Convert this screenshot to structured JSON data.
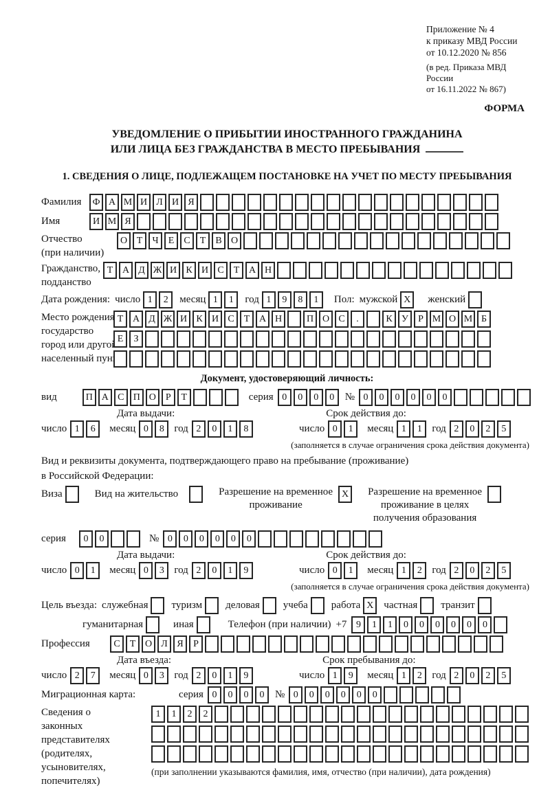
{
  "doc": {
    "annex": [
      "Приложение № 4",
      "к приказу МВД России",
      "от 10.12.2020 № 856"
    ],
    "annex_note": [
      "(в ред. Приказа МВД России",
      "от 16.11.2022 № 867)"
    ],
    "form_label": "ФОРМА",
    "title1": "УВЕДОМЛЕНИЕ О ПРИБЫТИИ ИНОСТРАННОГО ГРАЖДАНИНА",
    "title2": "ИЛИ ЛИЦА БЕЗ ГРАЖДАНСТВА В МЕСТО ПРЕБЫВАНИЯ",
    "section1": "1. СВЕДЕНИЯ О ЛИЦЕ, ПОДЛЕЖАЩЕМ ПОСТАНОВКЕ НА УЧЕТ ПО МЕСТУ ПРЕБЫВАНИЯ"
  },
  "labels": {
    "surname": "Фамилия",
    "name": "Имя",
    "patronymic": "Отчество",
    "patronymic_note": "(при наличии)",
    "citizenship_l1": "Гражданство,",
    "citizenship_l2": "подданство",
    "birth_date": "Дата рождения:",
    "day": "число",
    "month": "месяц",
    "year": "год",
    "sex": "Пол:",
    "male": "мужской",
    "female": "женский",
    "birth_place": [
      "Место рождения:",
      "государство",
      "город или другой",
      "населенный пункт"
    ],
    "identity_doc": "Документ, удостоверяющий личность:",
    "kind": "вид",
    "series": "серия",
    "number_sign": "№",
    "issue_date": "Дата выдачи:",
    "valid_until": "Срок действия до:",
    "limited_note": "(заполняется в случае ограничения срока действия документа)",
    "residence_doc_l1": "Вид и реквизиты документа, подтверждающего право на пребывание (проживание)",
    "residence_doc_l2": "в Российской Федерации:",
    "visa": "Виза",
    "residence_permit": "Вид на жительство",
    "temp_residence": [
      "Разрешение на временное",
      "проживание"
    ],
    "temp_residence_edu": [
      "Разрешение на временное",
      "проживание в целях",
      "получения образования"
    ],
    "entry_purpose": "Цель въезда:",
    "purpose_options": [
      "служебная",
      "туризм",
      "деловая",
      "учеба",
      "работа",
      "частная",
      "транзит"
    ],
    "purpose_options2": [
      "гуманитарная",
      "иная"
    ],
    "phone": "Телефон (при наличии)",
    "phone_prefix": "+7",
    "profession": "Профессия",
    "entry_date": "Дата въезда:",
    "stay_until": "Срок пребывания до:",
    "migration_card": "Миграционная карта:",
    "legal_rep_lines": [
      "Сведения о",
      "законных",
      "представителях",
      "(родителях,",
      "усыновителях,",
      "попечителях)"
    ],
    "legal_rep_note": "(при заполнении указываются фамилия, имя, отчество (при наличии), дата рождения)"
  },
  "values": {
    "surname": {
      "value": "ФАМИЛИЯ",
      "len": 26
    },
    "name": {
      "value": "ИМЯ",
      "len": 26
    },
    "patronymic": {
      "value": "ОТЧЕСТВО",
      "len": 25
    },
    "citizenship": {
      "value": "ТАДЖИКИСТАН",
      "len": 26
    },
    "birth_day": {
      "value": "12",
      "len": 2
    },
    "birth_month": {
      "value": "11",
      "len": 2
    },
    "birth_year": {
      "value": "1981",
      "len": 4
    },
    "sex_male_cb": {
      "value": "X",
      "len": 1
    },
    "sex_female_cb": {
      "value": "",
      "len": 1
    },
    "birth_place_row1": {
      "value": "ТАДЖИКИСТАН ПОС. КУРМОМБ",
      "len": 24
    },
    "birth_place_row2": {
      "value": "ЕЗ",
      "len": 24
    },
    "birth_place_row3": {
      "value": "",
      "len": 24
    },
    "passport_kind": {
      "value": "ПАСПОРТ",
      "len": 10
    },
    "passport_series": {
      "value": "0000",
      "len": 4
    },
    "passport_number": {
      "value": "000000",
      "len": 11
    },
    "passport_issue_day": {
      "value": "16",
      "len": 2
    },
    "passport_issue_month": {
      "value": "08",
      "len": 2
    },
    "passport_issue_year": {
      "value": "2018",
      "len": 4
    },
    "passport_valid_day": {
      "value": "01",
      "len": 2
    },
    "passport_valid_month": {
      "value": "11",
      "len": 2
    },
    "passport_valid_year": {
      "value": "2025",
      "len": 4
    },
    "visa_cb": {
      "value": "",
      "len": 1
    },
    "residence_permit_cb": {
      "value": "",
      "len": 1
    },
    "temp_residence_cb": {
      "value": "X",
      "len": 1
    },
    "temp_residence_edu_cb": {
      "value": "",
      "len": 1
    },
    "resdoc_series": {
      "value": "00",
      "len": 4
    },
    "resdoc_number": {
      "value": "000000",
      "len": 14
    },
    "resdoc_issue_day": {
      "value": "01",
      "len": 2
    },
    "resdoc_issue_month": {
      "value": "03",
      "len": 2
    },
    "resdoc_issue_year": {
      "value": "2019",
      "len": 4
    },
    "resdoc_valid_day": {
      "value": "01",
      "len": 2
    },
    "resdoc_valid_month": {
      "value": "12",
      "len": 2
    },
    "resdoc_valid_year": {
      "value": "2025",
      "len": 4
    },
    "purpose_official_cb": {
      "value": "",
      "len": 1
    },
    "purpose_tourism_cb": {
      "value": "",
      "len": 1
    },
    "purpose_business_cb": {
      "value": "",
      "len": 1
    },
    "purpose_study_cb": {
      "value": "",
      "len": 1
    },
    "purpose_work_cb": {
      "value": "X",
      "len": 1
    },
    "purpose_private_cb": {
      "value": "",
      "len": 1
    },
    "purpose_transit_cb": {
      "value": "",
      "len": 1
    },
    "purpose_humanitarian_cb": {
      "value": "",
      "len": 1
    },
    "purpose_other_cb": {
      "value": "",
      "len": 1
    },
    "phone": {
      "value": "911000000",
      "len": 10
    },
    "profession": {
      "value": "СТОЛЯР",
      "len": 25
    },
    "entry_day": {
      "value": "27",
      "len": 2
    },
    "entry_month": {
      "value": "03",
      "len": 2
    },
    "entry_year": {
      "value": "2019",
      "len": 4
    },
    "stay_day": {
      "value": "19",
      "len": 2
    },
    "stay_month": {
      "value": "12",
      "len": 2
    },
    "stay_year": {
      "value": "2025",
      "len": 4
    },
    "migcard_series": {
      "value": "0000",
      "len": 4
    },
    "migcard_number": {
      "value": "000000",
      "len": 11
    },
    "rep_row1": {
      "value": "1122",
      "len": 24
    },
    "rep_row2": {
      "value": "",
      "len": 24
    },
    "rep_row3": {
      "value": "",
      "len": 24
    }
  }
}
